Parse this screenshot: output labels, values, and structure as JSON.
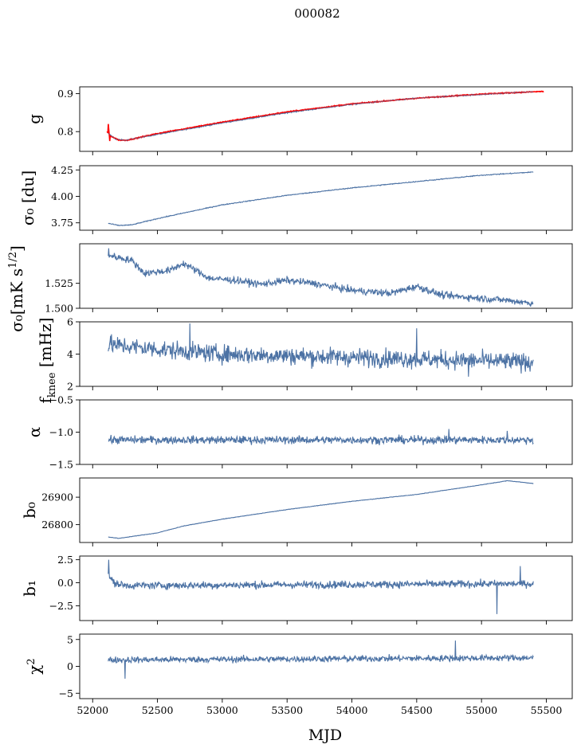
{
  "figure": {
    "title": "000082",
    "xlabel": "MJD"
  },
  "colors": {
    "series": "#4c72a4",
    "fit": "#ff0000",
    "frame": "#000000"
  },
  "chart_data": [
    {
      "type": "line",
      "key": "g",
      "ylabel": "g",
      "xlim": [
        51900,
        55700
      ],
      "ylim": [
        0.748,
        0.918
      ],
      "yticks": [
        0.8,
        0.9
      ],
      "yticklabels": [
        "0.8",
        "0.9"
      ],
      "x_range": [
        52120,
        55400
      ],
      "trend": [
        [
          52120,
          0.795
        ],
        [
          52180,
          0.78
        ],
        [
          52250,
          0.777
        ],
        [
          52500,
          0.793
        ],
        [
          53000,
          0.823
        ],
        [
          53500,
          0.85
        ],
        [
          54000,
          0.872
        ],
        [
          54500,
          0.888
        ],
        [
          55000,
          0.898
        ],
        [
          55400,
          0.905
        ]
      ],
      "noise": 0.0015,
      "spikes": [],
      "overlay": {
        "name": "fit",
        "color": "red",
        "x_range": [
          52110,
          55480
        ],
        "trend": [
          [
            52110,
            0.8
          ],
          [
            52130,
            0.79
          ],
          [
            52200,
            0.778
          ],
          [
            52260,
            0.777
          ],
          [
            52500,
            0.795
          ],
          [
            53000,
            0.825
          ],
          [
            53500,
            0.852
          ],
          [
            54000,
            0.873
          ],
          [
            54500,
            0.888
          ],
          [
            55000,
            0.899
          ],
          [
            55480,
            0.906
          ]
        ],
        "noise": 0.0012,
        "spikes": [
          [
            52120,
            0.82
          ],
          [
            52125,
            0.805
          ],
          [
            52130,
            0.775
          ]
        ]
      }
    },
    {
      "type": "line",
      "key": "sigma0_du",
      "ylabel": "σ₀ [du]",
      "xlim": [
        51900,
        55700
      ],
      "ylim": [
        3.68,
        4.29
      ],
      "yticks": [
        3.75,
        4.0,
        4.25
      ],
      "yticklabels": [
        "3.75",
        "4.00",
        "4.25"
      ],
      "x_range": [
        52120,
        55400
      ],
      "trend": [
        [
          52120,
          3.745
        ],
        [
          52200,
          3.725
        ],
        [
          52300,
          3.73
        ],
        [
          52500,
          3.79
        ],
        [
          53000,
          3.92
        ],
        [
          53500,
          4.01
        ],
        [
          54000,
          4.08
        ],
        [
          54500,
          4.14
        ],
        [
          55000,
          4.2
        ],
        [
          55400,
          4.23
        ]
      ],
      "noise": 0.004,
      "spikes": []
    },
    {
      "type": "line",
      "key": "sigma0_mK",
      "ylabel": "σ₀[mK s^1/2]",
      "xlim": [
        51900,
        55700
      ],
      "ylim": [
        1.5,
        1.5645
      ],
      "yticks": [
        1.5,
        1.525
      ],
      "yticklabels": [
        "1.500",
        "1.525"
      ],
      "x_range": [
        52120,
        55400
      ],
      "trend": [
        [
          52120,
          1.553
        ],
        [
          52300,
          1.548
        ],
        [
          52400,
          1.535
        ],
        [
          52600,
          1.538
        ],
        [
          52700,
          1.545
        ],
        [
          52900,
          1.53
        ],
        [
          53100,
          1.528
        ],
        [
          53300,
          1.524
        ],
        [
          53500,
          1.528
        ],
        [
          53700,
          1.525
        ],
        [
          54000,
          1.518
        ],
        [
          54300,
          1.515
        ],
        [
          54500,
          1.522
        ],
        [
          54700,
          1.513
        ],
        [
          55000,
          1.51
        ],
        [
          55200,
          1.508
        ],
        [
          55400,
          1.505
        ]
      ],
      "noise": 0.0035,
      "spikes": [
        [
          52125,
          1.56
        ]
      ]
    },
    {
      "type": "line",
      "key": "fknee",
      "ylabel": "f_knee [mHz]",
      "xlim": [
        51900,
        55700
      ],
      "ylim": [
        2,
        6
      ],
      "yticks": [
        2,
        4,
        6
      ],
      "yticklabels": [
        "2",
        "4",
        "6"
      ],
      "x_range": [
        52120,
        55400
      ],
      "trend": [
        [
          52120,
          4.6
        ],
        [
          52500,
          4.3
        ],
        [
          53000,
          4.0
        ],
        [
          54000,
          3.8
        ],
        [
          55400,
          3.5
        ]
      ],
      "noise": 0.55,
      "spikes": [
        [
          52750,
          5.9
        ],
        [
          54500,
          5.6
        ],
        [
          54900,
          2.6
        ]
      ]
    },
    {
      "type": "line",
      "key": "alpha",
      "ylabel": "α",
      "xlim": [
        51900,
        55700
      ],
      "ylim": [
        -1.5,
        -0.5
      ],
      "yticks": [
        -1.5,
        -1.0,
        -0.5
      ],
      "yticklabels": [
        "−1.5",
        "−1.0",
        "−0.5"
      ],
      "x_range": [
        52120,
        55400
      ],
      "trend": [
        [
          52120,
          -1.12
        ],
        [
          55400,
          -1.12
        ]
      ],
      "noise": 0.06,
      "spikes": [
        [
          54750,
          -0.95
        ],
        [
          55200,
          -0.98
        ]
      ]
    },
    {
      "type": "line",
      "key": "b0",
      "ylabel": "b₀",
      "xlim": [
        51900,
        55700
      ],
      "ylim": [
        26735,
        26970
      ],
      "yticks": [
        26800,
        26900
      ],
      "yticklabels": [
        "26800",
        "26900"
      ],
      "x_range": [
        52120,
        55400
      ],
      "trend": [
        [
          52120,
          26755
        ],
        [
          52200,
          26750
        ],
        [
          52500,
          26770
        ],
        [
          52700,
          26795
        ],
        [
          53000,
          26820
        ],
        [
          53500,
          26855
        ],
        [
          54000,
          26885
        ],
        [
          54500,
          26910
        ],
        [
          55000,
          26945
        ],
        [
          55200,
          26960
        ],
        [
          55400,
          26950
        ]
      ],
      "noise": 0.8,
      "spikes": []
    },
    {
      "type": "line",
      "key": "b1",
      "ylabel": "b₁",
      "xlim": [
        51900,
        55700
      ],
      "ylim": [
        -4.1,
        2.9
      ],
      "yticks": [
        -2.5,
        0.0,
        2.5
      ],
      "yticklabels": [
        "−2.5",
        "0.0",
        "2.5"
      ],
      "x_range": [
        52120,
        55400
      ],
      "trend": [
        [
          52120,
          1.0
        ],
        [
          52160,
          0.0
        ],
        [
          52250,
          -0.3
        ],
        [
          55400,
          -0.1
        ]
      ],
      "noise": 0.4,
      "spikes": [
        [
          52125,
          2.5
        ],
        [
          55120,
          -3.4
        ],
        [
          55300,
          1.8
        ]
      ]
    },
    {
      "type": "line",
      "key": "chi2",
      "ylabel": "χ²",
      "xlim": [
        51900,
        55700
      ],
      "ylim": [
        -6,
        6
      ],
      "yticks": [
        -5,
        0,
        5
      ],
      "yticklabels": [
        "−5",
        "0",
        "5"
      ],
      "x_range": [
        52120,
        55400
      ],
      "trend": [
        [
          52120,
          1.2
        ],
        [
          55400,
          1.6
        ]
      ],
      "noise": 0.6,
      "spikes": [
        [
          52250,
          -2.3
        ],
        [
          54800,
          4.8
        ]
      ]
    }
  ],
  "xaxis": {
    "ticks": [
      52000,
      52500,
      53000,
      53500,
      54000,
      54500,
      55000,
      55500
    ],
    "ticklabels": [
      "52000",
      "52500",
      "53000",
      "53500",
      "54000",
      "54500",
      "55000",
      "55500"
    ]
  }
}
